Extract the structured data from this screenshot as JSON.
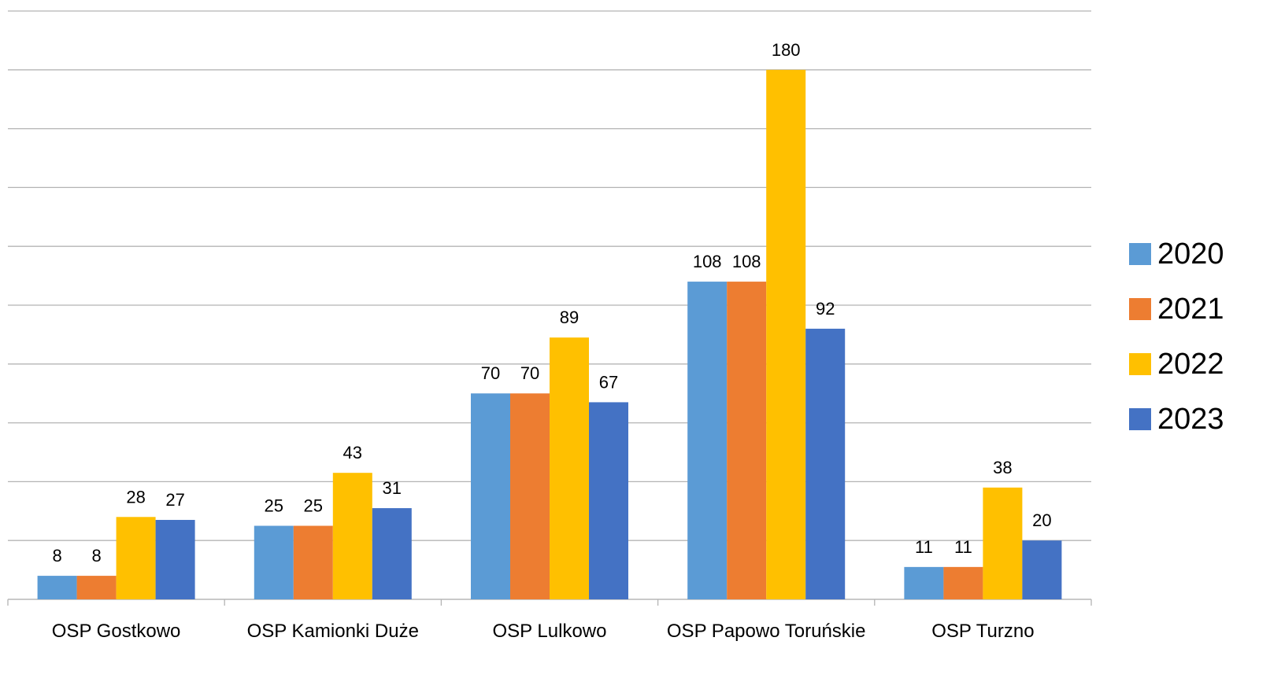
{
  "chart_data": {
    "type": "bar",
    "categories": [
      "OSP Gostkowo",
      "OSP Kamionki Duże",
      "OSP Lulkowo",
      "OSP Papowo Toruńskie",
      "OSP Turzno"
    ],
    "series": [
      {
        "name": "2020",
        "color": "#5b9bd5",
        "values": [
          8,
          25,
          70,
          108,
          11
        ]
      },
      {
        "name": "2021",
        "color": "#ed7d31",
        "values": [
          8,
          25,
          70,
          108,
          11
        ]
      },
      {
        "name": "2022",
        "color": "#ffc000",
        "values": [
          28,
          43,
          89,
          180,
          38
        ]
      },
      {
        "name": "2023",
        "color": "#4472c4",
        "values": [
          27,
          31,
          67,
          92,
          20
        ]
      }
    ],
    "ylim": [
      0,
      200
    ],
    "yticks": [
      0,
      20,
      40,
      60,
      80,
      100,
      120,
      140,
      160,
      180,
      200
    ],
    "grid": true,
    "legend": "right"
  }
}
